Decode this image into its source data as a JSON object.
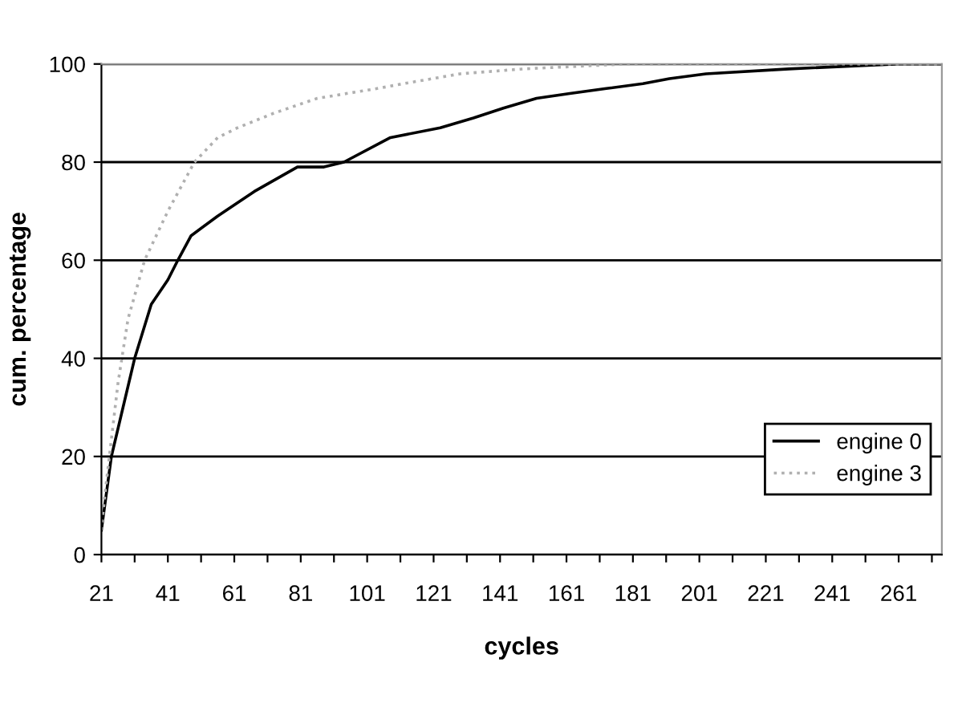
{
  "chart_data": {
    "type": "line",
    "xlabel": "cycles",
    "ylabel": "cum. percentage",
    "xlim": [
      21,
      274
    ],
    "ylim": [
      0,
      100
    ],
    "xticks": [
      21,
      {
        "value": 31,
        "label": null
      },
      41,
      {
        "value": 51,
        "label": null
      },
      61,
      {
        "value": 71,
        "label": null
      },
      81,
      {
        "value": 91,
        "label": null
      },
      101,
      {
        "value": 111,
        "label": null
      },
      121,
      {
        "value": 131,
        "label": null
      },
      141,
      {
        "value": 151,
        "label": null
      },
      161,
      {
        "value": 171,
        "label": null
      },
      181,
      {
        "value": 191,
        "label": null
      },
      201,
      {
        "value": 211,
        "label": null
      },
      221,
      {
        "value": 231,
        "label": null
      },
      241,
      {
        "value": 251,
        "label": null
      },
      261,
      {
        "value": 271,
        "label": null
      }
    ],
    "yticks": [
      0,
      20,
      40,
      60,
      80,
      100
    ],
    "grid": "y",
    "legend": "bottom right",
    "marker": "none",
    "series": [
      {
        "name": "engine 0",
        "color": "#000000",
        "line_style": "solid",
        "x": [
          21,
          24,
          31,
          36,
          41,
          44,
          48,
          56,
          67,
          80,
          88,
          94,
          108,
          123,
          133,
          142,
          152,
          162,
          173,
          184,
          192,
          203,
          228,
          261,
          274
        ],
        "values": [
          5,
          20,
          40,
          51,
          56,
          60,
          65,
          69,
          74,
          79,
          79,
          80,
          85,
          87,
          89,
          91,
          93,
          94,
          95,
          96,
          97,
          98,
          99,
          100,
          100
        ]
      },
      {
        "name": "engine 3",
        "color": "#b0b0b0",
        "line_style": "dotted",
        "x": [
          21,
          22,
          26,
          29,
          34,
          41,
          49,
          56,
          62,
          73,
          86,
          104,
          112,
          129,
          148,
          179,
          274
        ],
        "values": [
          5,
          12,
          35,
          48,
          60,
          70,
          80,
          85,
          87,
          90,
          93,
          95,
          96,
          98,
          99,
          100,
          100
        ]
      }
    ]
  }
}
